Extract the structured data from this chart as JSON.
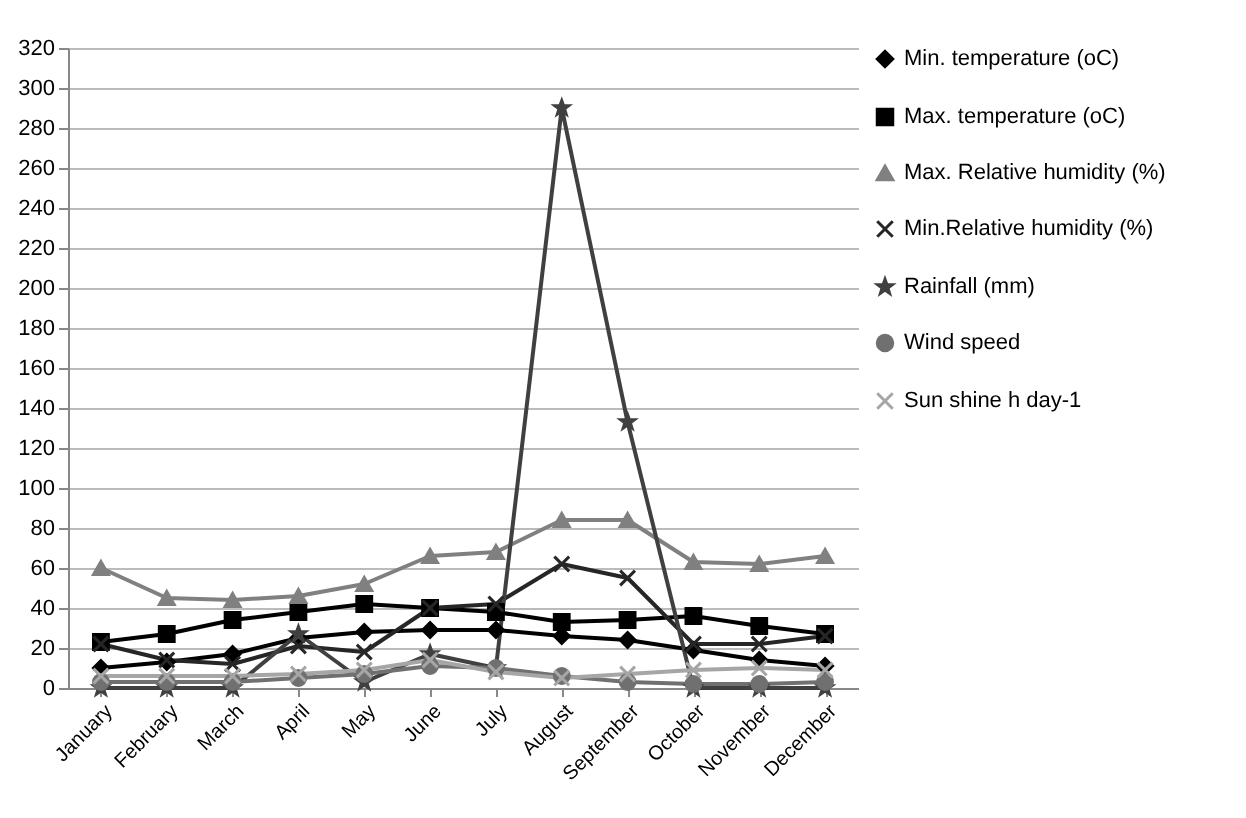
{
  "chart_data": {
    "type": "line",
    "categories": [
      "January",
      "February",
      "March",
      "April",
      "May",
      "June",
      "July",
      "August",
      "September",
      "October",
      "November",
      "December"
    ],
    "series": [
      {
        "name": "Min. temperature (oC)",
        "color": "#000000",
        "marker": "diamond",
        "values": [
          10,
          13,
          17,
          25,
          28,
          29,
          29,
          26,
          24,
          19,
          14,
          11
        ]
      },
      {
        "name": "Max. temperature (oC)",
        "color": "#000000",
        "marker": "square",
        "values": [
          23,
          27,
          34,
          38,
          42,
          40,
          38,
          33,
          34,
          36,
          31,
          27
        ]
      },
      {
        "name": "Max. Relative humidity (%)",
        "color": "#808080",
        "marker": "triangle",
        "values": [
          60,
          45,
          44,
          46,
          52,
          66,
          68,
          84,
          84,
          63,
          62,
          66
        ]
      },
      {
        "name": "Min.Relative humidity (%)",
        "color": "#262626",
        "marker": "cross",
        "values": [
          22,
          14,
          12,
          21,
          18,
          40,
          42,
          62,
          55,
          22,
          22,
          26
        ]
      },
      {
        "name": "Rainfall (mm)",
        "color": "#404040",
        "marker": "star",
        "values": [
          0,
          0,
          0,
          27,
          3,
          17,
          10,
          290,
          133,
          0,
          0,
          0
        ]
      },
      {
        "name": "Wind speed",
        "color": "#707070",
        "marker": "circle",
        "values": [
          3,
          3,
          3,
          5,
          7,
          11,
          10,
          6,
          3,
          2,
          2,
          3
        ]
      },
      {
        "name": "Sun shine h day-1",
        "color": "#a6a6a6",
        "marker": "cross",
        "values": [
          6,
          6,
          6,
          7,
          9,
          14,
          8,
          5,
          7,
          9,
          10,
          9
        ]
      }
    ],
    "ylim": [
      0,
      320
    ],
    "yticks": [
      0,
      20,
      40,
      60,
      80,
      100,
      120,
      140,
      160,
      180,
      200,
      220,
      240,
      260,
      280,
      300,
      320
    ],
    "grid": "y",
    "legend": "right"
  }
}
